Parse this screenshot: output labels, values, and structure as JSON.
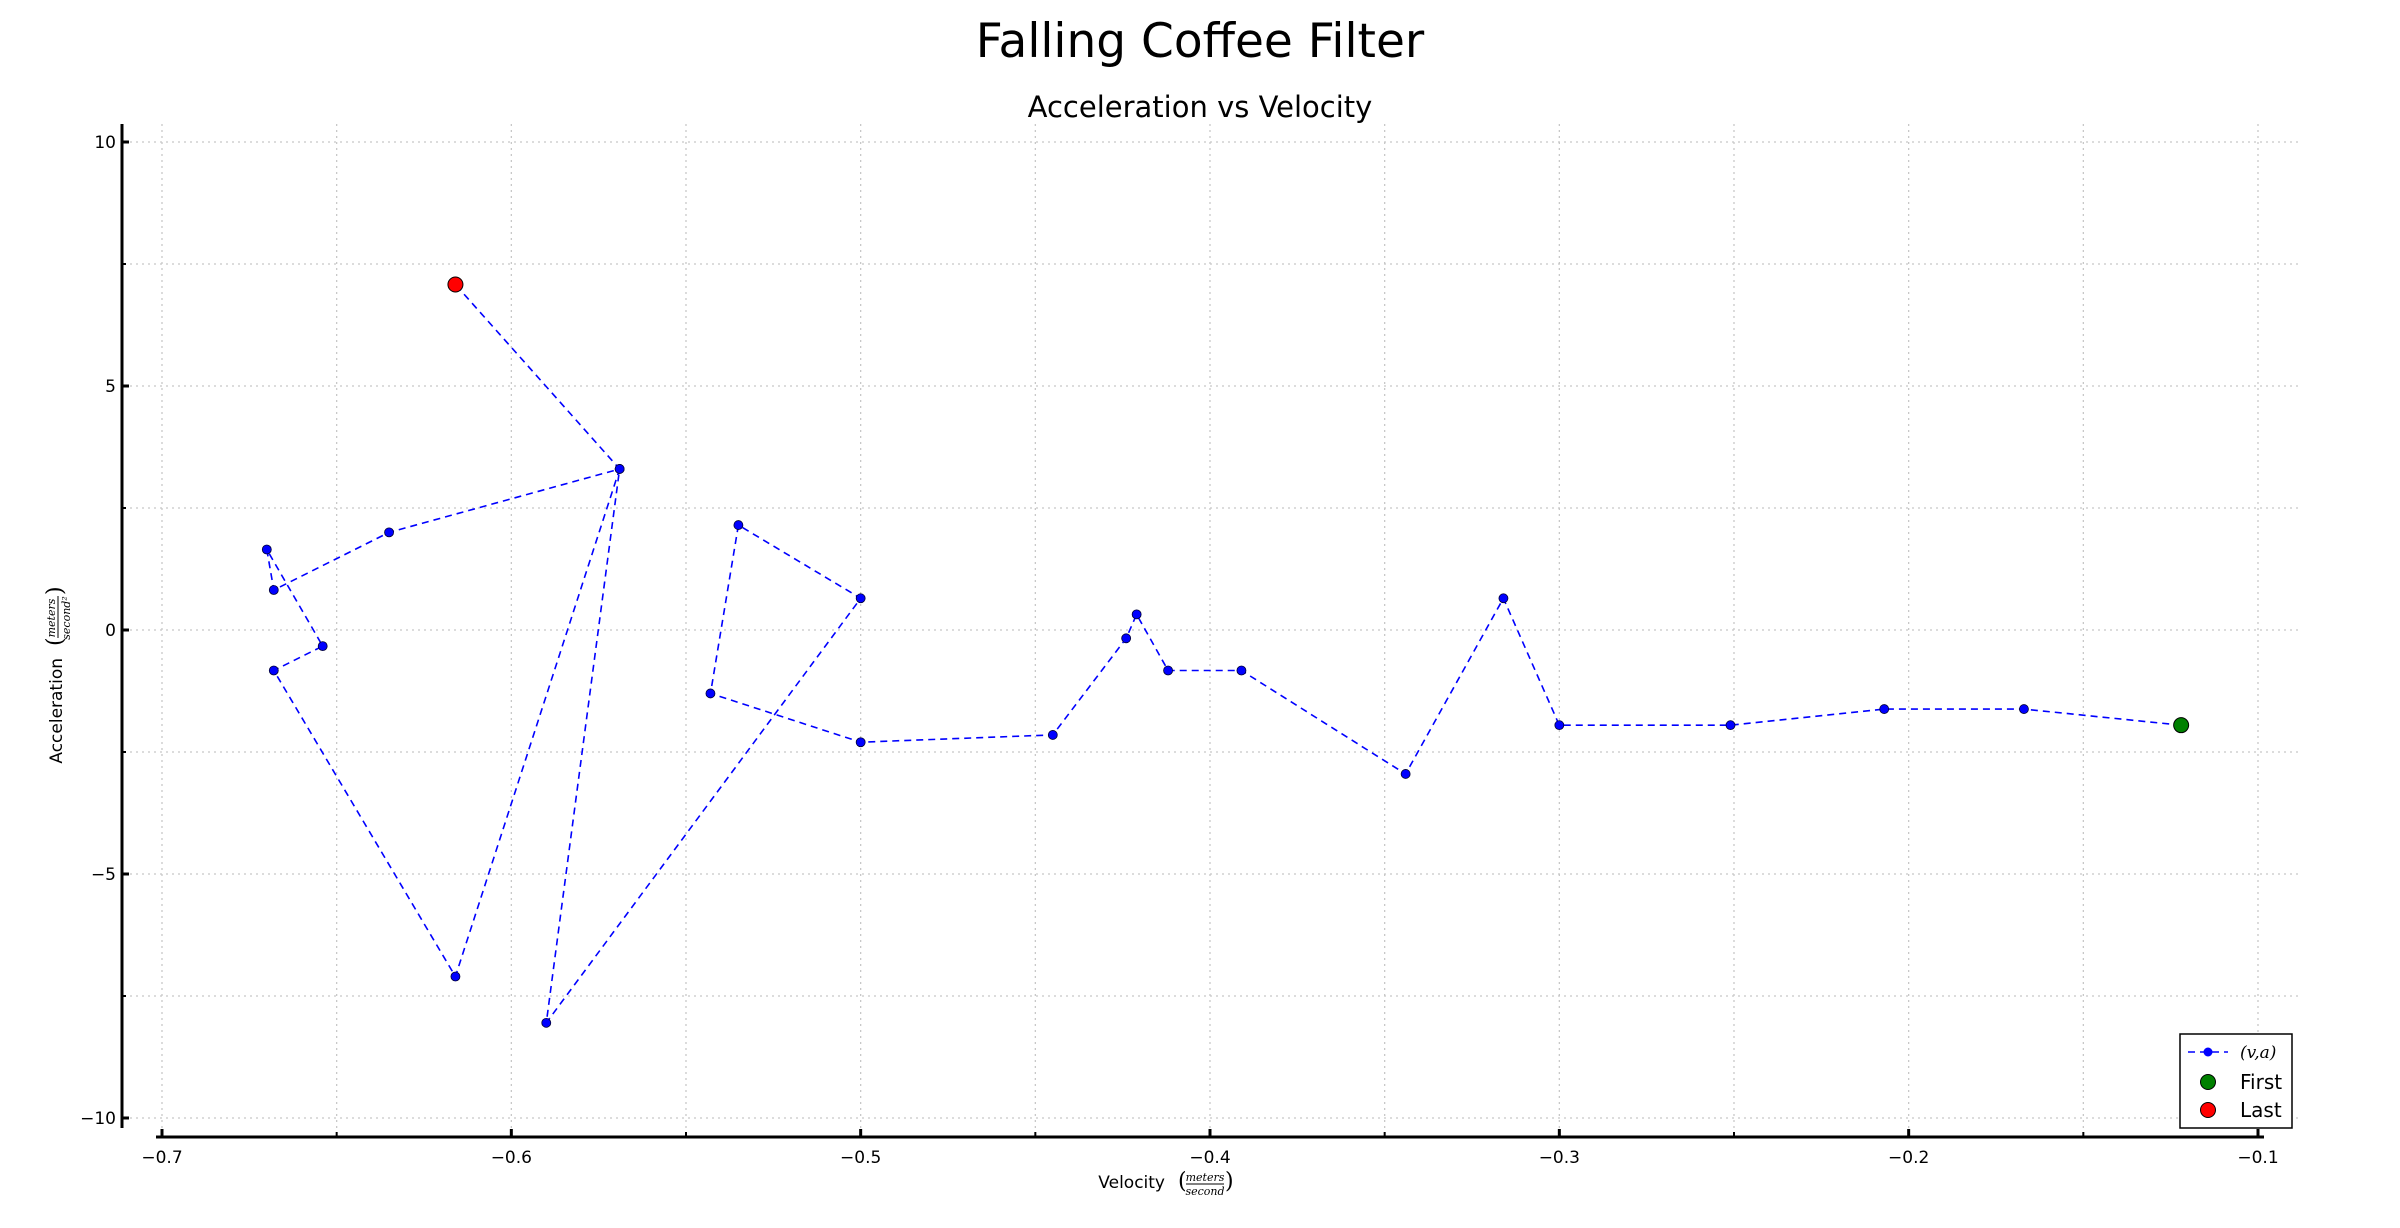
{
  "figure_title": "Falling Coffee Filter",
  "colors": {
    "series": "#0000ff",
    "first": "#008000",
    "last": "#ff0000",
    "grid": "#c8c8c8",
    "axis": "#000000"
  },
  "chart_data": {
    "type": "line",
    "title": "Acceleration vs Velocity",
    "xlabel": "Velocity",
    "xlabel_units": "meters / second",
    "ylabel": "Acceleration",
    "ylabel_units": "meters / second²",
    "xlim": [
      -0.7,
      -0.1
    ],
    "ylim": [
      -10,
      10
    ],
    "x_ticks": [
      "−0.7",
      "−0.6",
      "−0.5",
      "−0.4",
      "−0.3",
      "−0.2",
      "−0.1"
    ],
    "y_ticks": [
      "10",
      "5",
      "0",
      "−5",
      "−10"
    ],
    "grid": true,
    "legend_position": "bottom-right",
    "series": [
      {
        "name": "(v,a)",
        "style": "dashed line with point markers",
        "x": [
          -0.122,
          -0.167,
          -0.207,
          -0.251,
          -0.3,
          -0.316,
          -0.344,
          -0.391,
          -0.412,
          -0.421,
          -0.424,
          -0.445,
          -0.5,
          -0.543,
          -0.535,
          -0.5,
          -0.59,
          -0.569,
          -0.616,
          -0.668,
          -0.654,
          -0.67,
          -0.668,
          -0.635,
          -0.569,
          -0.616
        ],
        "y": [
          -1.95,
          -1.62,
          -1.62,
          -1.95,
          -1.95,
          0.65,
          -2.95,
          -0.83,
          -0.83,
          0.32,
          -0.17,
          -2.15,
          -2.3,
          -1.3,
          2.15,
          0.65,
          -8.05,
          3.3,
          -7.1,
          -0.83,
          -0.33,
          1.65,
          0.82,
          2.0,
          3.3,
          7.08
        ]
      }
    ],
    "markers": [
      {
        "name": "First",
        "x": -0.122,
        "y": -1.95
      },
      {
        "name": "Last",
        "x": -0.616,
        "y": 7.08
      }
    ]
  }
}
